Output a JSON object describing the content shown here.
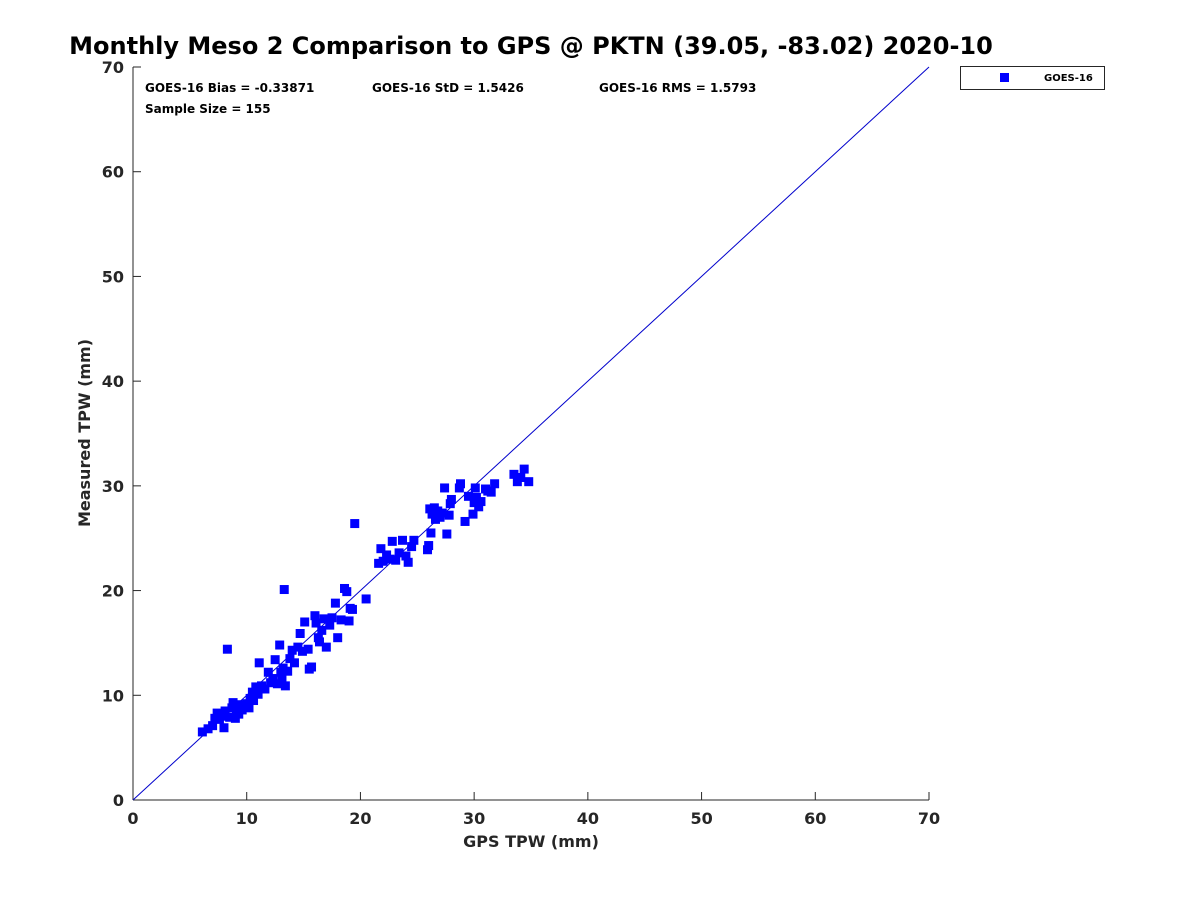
{
  "chart_data": {
    "type": "scatter",
    "title": "Monthly Meso 2 Comparison to GPS @ PKTN (39.05, -83.02) 2020-10",
    "xlabel": "GPS TPW (mm)",
    "ylabel": "Measured TPW (mm)",
    "xlim": [
      0,
      70
    ],
    "ylim": [
      0,
      70
    ],
    "x_ticks": [
      "0",
      "10",
      "20",
      "30",
      "40",
      "50",
      "60",
      "70"
    ],
    "y_ticks": [
      "0",
      "10",
      "20",
      "30",
      "40",
      "50",
      "60",
      "70"
    ],
    "grid": false,
    "legend_position": "outside-top-right",
    "reference_line": {
      "from": [
        0,
        0
      ],
      "to": [
        70,
        70
      ],
      "color": "#0000cc"
    },
    "annotations": {
      "bias": "GOES-16 Bias = -0.33871",
      "std": "GOES-16 StD = 1.5426",
      "rms": "GOES-16 RMS = 1.5793",
      "sample": "Sample Size = 155"
    },
    "series": [
      {
        "name": "GOES-16",
        "color": "#0000ff",
        "marker": "square",
        "points": [
          [
            6.1,
            6.5
          ],
          [
            6.6,
            6.8
          ],
          [
            7.0,
            7.1
          ],
          [
            7.2,
            7.8
          ],
          [
            7.4,
            8.3
          ],
          [
            7.6,
            7.7
          ],
          [
            7.8,
            8.0
          ],
          [
            8.0,
            6.9
          ],
          [
            8.1,
            8.5
          ],
          [
            8.3,
            14.4
          ],
          [
            8.5,
            7.9
          ],
          [
            8.7,
            8.8
          ],
          [
            8.8,
            9.3
          ],
          [
            9.0,
            7.8
          ],
          [
            9.1,
            8.4
          ],
          [
            9.3,
            8.2
          ],
          [
            9.4,
            9.1
          ],
          [
            9.6,
            8.6
          ],
          [
            9.8,
            8.9
          ],
          [
            10.0,
            9.2
          ],
          [
            10.2,
            8.8
          ],
          [
            10.3,
            9.7
          ],
          [
            10.5,
            10.3
          ],
          [
            10.6,
            9.5
          ],
          [
            10.8,
            10.8
          ],
          [
            11.0,
            10.1
          ],
          [
            11.1,
            13.1
          ],
          [
            11.3,
            10.9
          ],
          [
            11.6,
            10.6
          ],
          [
            11.9,
            12.2
          ],
          [
            12.1,
            11.2
          ],
          [
            12.3,
            11.6
          ],
          [
            12.5,
            13.4
          ],
          [
            12.7,
            11.1
          ],
          [
            12.9,
            14.8
          ],
          [
            13.0,
            12.2
          ],
          [
            13.1,
            11.7
          ],
          [
            13.2,
            12.6
          ],
          [
            13.3,
            20.1
          ],
          [
            13.4,
            10.9
          ],
          [
            13.6,
            12.3
          ],
          [
            13.8,
            13.5
          ],
          [
            14.0,
            14.3
          ],
          [
            14.2,
            13.1
          ],
          [
            14.5,
            14.6
          ],
          [
            14.7,
            15.9
          ],
          [
            14.9,
            14.2
          ],
          [
            15.1,
            17.0
          ],
          [
            15.4,
            14.4
          ],
          [
            15.5,
            12.5
          ],
          [
            15.7,
            12.7
          ],
          [
            16.0,
            17.6
          ],
          [
            16.1,
            16.9
          ],
          [
            16.3,
            15.5
          ],
          [
            16.4,
            15.1
          ],
          [
            16.6,
            16.2
          ],
          [
            16.8,
            17.3
          ],
          [
            17.0,
            14.6
          ],
          [
            17.3,
            16.7
          ],
          [
            17.5,
            17.4
          ],
          [
            17.8,
            18.8
          ],
          [
            18.0,
            15.5
          ],
          [
            18.3,
            17.2
          ],
          [
            18.6,
            20.2
          ],
          [
            18.8,
            19.9
          ],
          [
            19.0,
            17.1
          ],
          [
            19.1,
            18.3
          ],
          [
            19.3,
            18.2
          ],
          [
            19.5,
            26.4
          ],
          [
            20.5,
            19.2
          ],
          [
            21.6,
            22.6
          ],
          [
            21.8,
            24.0
          ],
          [
            22.0,
            22.8
          ],
          [
            22.3,
            23.4
          ],
          [
            22.6,
            23.0
          ],
          [
            22.8,
            24.7
          ],
          [
            23.1,
            22.9
          ],
          [
            23.4,
            23.6
          ],
          [
            23.7,
            24.8
          ],
          [
            24.0,
            23.3
          ],
          [
            24.2,
            22.7
          ],
          [
            24.5,
            24.2
          ],
          [
            24.7,
            24.8
          ],
          [
            25.9,
            23.9
          ],
          [
            26.0,
            24.3
          ],
          [
            26.1,
            27.8
          ],
          [
            26.2,
            25.5
          ],
          [
            26.3,
            27.3
          ],
          [
            26.5,
            27.9
          ],
          [
            26.6,
            26.8
          ],
          [
            26.8,
            27.6
          ],
          [
            27.0,
            27.0
          ],
          [
            27.2,
            27.4
          ],
          [
            27.4,
            29.8
          ],
          [
            27.6,
            25.4
          ],
          [
            27.8,
            27.2
          ],
          [
            27.9,
            28.3
          ],
          [
            28.0,
            28.7
          ],
          [
            28.7,
            29.8
          ],
          [
            28.8,
            30.2
          ],
          [
            29.2,
            26.6
          ],
          [
            29.5,
            29.0
          ],
          [
            29.9,
            27.3
          ],
          [
            30.0,
            28.4
          ],
          [
            30.1,
            29.8
          ],
          [
            30.2,
            28.9
          ],
          [
            30.4,
            28.0
          ],
          [
            30.6,
            28.5
          ],
          [
            31.0,
            29.7
          ],
          [
            31.2,
            29.5
          ],
          [
            31.5,
            29.4
          ],
          [
            31.8,
            30.2
          ],
          [
            33.5,
            31.1
          ],
          [
            33.8,
            30.4
          ],
          [
            34.1,
            30.8
          ],
          [
            34.4,
            31.6
          ],
          [
            34.8,
            30.4
          ]
        ]
      }
    ]
  }
}
